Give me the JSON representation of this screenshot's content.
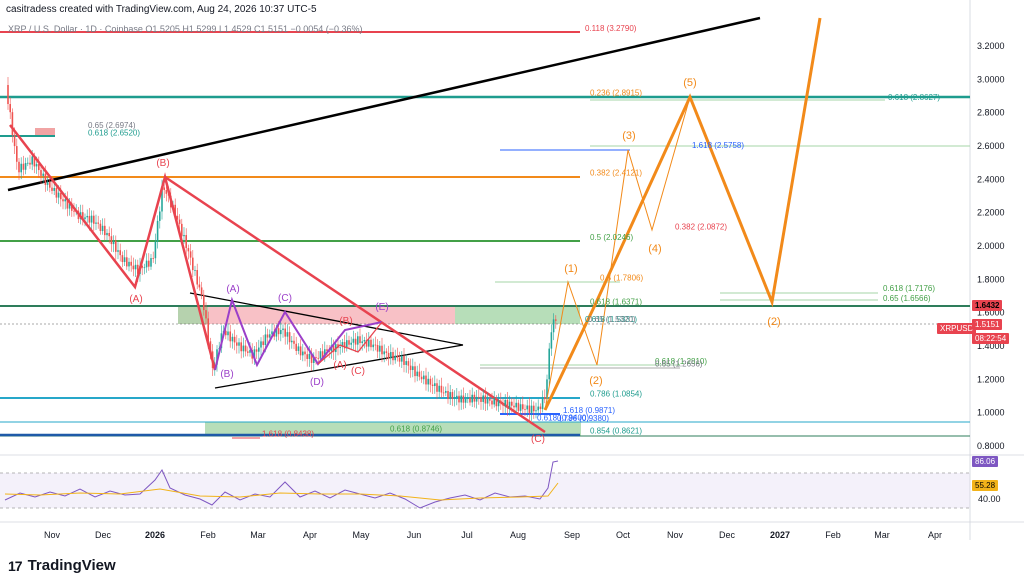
{
  "header": {
    "credit": "casitradess created with TradingView.com, Aug 24, 2026 10:37 UTC-5",
    "symbol_line": "XRP / U.S. Dollar · 1D · Coinbase  O1.5205  H1.5299  L1.4529  C1.5151  −0.0054 (−0.36%)"
  },
  "branding": {
    "logo_mark": "17",
    "name": "TradingView"
  },
  "price_tags": {
    "current_symbol": "XRPUSD",
    "current_price": "1.5151",
    "countdown": "08:22:54",
    "level_price": "1.6432",
    "rsi_value": "86.06",
    "rsi_ma": "55.28",
    "rsi_level": "40.00"
  },
  "colors": {
    "orange": "#f28a1a",
    "green": "#2e8b57",
    "teal": "#1e9c8e",
    "red": "#e8434f",
    "purple": "#9b3fc9",
    "blue": "#2962ff",
    "rsi": "#7e57c2",
    "black": "#000000"
  },
  "chart_data": {
    "type": "candlestick",
    "y_axis": {
      "ticks": [
        "3.2000",
        "3.0000",
        "2.8000",
        "2.6000",
        "2.4000",
        "2.2000",
        "2.0000",
        "1.8000",
        "1.6000",
        "1.4000",
        "1.2000",
        "1.0000",
        "0.8000"
      ],
      "range": [
        0.77,
        3.37
      ]
    },
    "x_axis": {
      "ticks": [
        "Nov",
        "Dec",
        "2026",
        "Feb",
        "Mar",
        "Apr",
        "May",
        "Jun",
        "Jul",
        "Aug",
        "Sep",
        "Oct",
        "Nov",
        "Dec",
        "2027",
        "Feb",
        "Mar",
        "Apr"
      ]
    },
    "fib_labels": [
      {
        "text": "0.118 (3.2790)",
        "price": 3.279,
        "color": "red"
      },
      {
        "text": "0.236 (2.8915)",
        "price": 2.8915,
        "color": "orange"
      },
      {
        "text": "0.618 (2.8627)",
        "price": 2.8627,
        "color": "teal"
      },
      {
        "text": "0.65 (2.6974)",
        "price": 2.6974,
        "color": "gray"
      },
      {
        "text": "0.618 (2.6520)",
        "price": 2.652,
        "color": "teal"
      },
      {
        "text": "1.618 (2.5758)",
        "price": 2.5758,
        "color": "blue"
      },
      {
        "text": "0.382 (2.4121)",
        "price": 2.4121,
        "color": "orange"
      },
      {
        "text": "0.382 (2.0872)",
        "price": 2.0872,
        "color": "red"
      },
      {
        "text": "0.5 (2.0246)",
        "price": 2.0246,
        "color": "green"
      },
      {
        "text": "0.5 (1.7806)",
        "price": 1.7806,
        "color": "orange"
      },
      {
        "text": "0.618 (1.7176)",
        "price": 1.7176,
        "color": "green"
      },
      {
        "text": "0.65 (1.6566)",
        "price": 1.6566,
        "color": "green"
      },
      {
        "text": "0.618 (1.6371)",
        "price": 1.6371,
        "color": "green"
      },
      {
        "text": "0.618 (1.5331)",
        "price": 1.5331,
        "color": "teal"
      },
      {
        "text": "0.65 (1.5320)",
        "price": 1.532,
        "color": "gray"
      },
      {
        "text": "0.618 (1.2810)",
        "price": 1.281,
        "color": "green"
      },
      {
        "text": "0.65 (1.2656)",
        "price": 1.2656,
        "color": "gray"
      },
      {
        "text": "0.786 (1.0854)",
        "price": 1.0854,
        "color": "teal"
      },
      {
        "text": "1.618 (0.9871)",
        "price": 0.9871,
        "color": "blue"
      },
      {
        "text": "0.618 (0.9400)",
        "price": 0.94,
        "color": "blue"
      },
      {
        "text": "0.786 (0.9380)",
        "price": 0.938,
        "color": "blue"
      },
      {
        "text": "0.618 (0.8746)",
        "price": 0.8746,
        "color": "green"
      },
      {
        "text": "1.618 (0.8438)",
        "price": 0.8438,
        "color": "red"
      },
      {
        "text": "0.854 (0.8621)",
        "price": 0.8621,
        "color": "teal"
      }
    ],
    "wave_labels": [
      {
        "text": "(B)",
        "color": "red"
      },
      {
        "text": "(A)",
        "color": "red"
      },
      {
        "text": "(A)",
        "color": "purple"
      },
      {
        "text": "(C)",
        "color": "purple"
      },
      {
        "text": "(E)",
        "color": "purple"
      },
      {
        "text": "(B)",
        "color": "purple"
      },
      {
        "text": "(D)",
        "color": "purple"
      },
      {
        "text": "(B)",
        "color": "red"
      },
      {
        "text": "(A)",
        "color": "red"
      },
      {
        "text": "(C)",
        "color": "red"
      },
      {
        "text": "(C)",
        "color": "red"
      },
      {
        "text": "(1)",
        "color": "orange"
      },
      {
        "text": "(2)",
        "color": "orange"
      },
      {
        "text": "(3)",
        "color": "orange"
      },
      {
        "text": "(4)",
        "color": "orange"
      },
      {
        "text": "(5)",
        "color": "orange"
      },
      {
        "text": "(2)",
        "color": "orange"
      }
    ]
  }
}
